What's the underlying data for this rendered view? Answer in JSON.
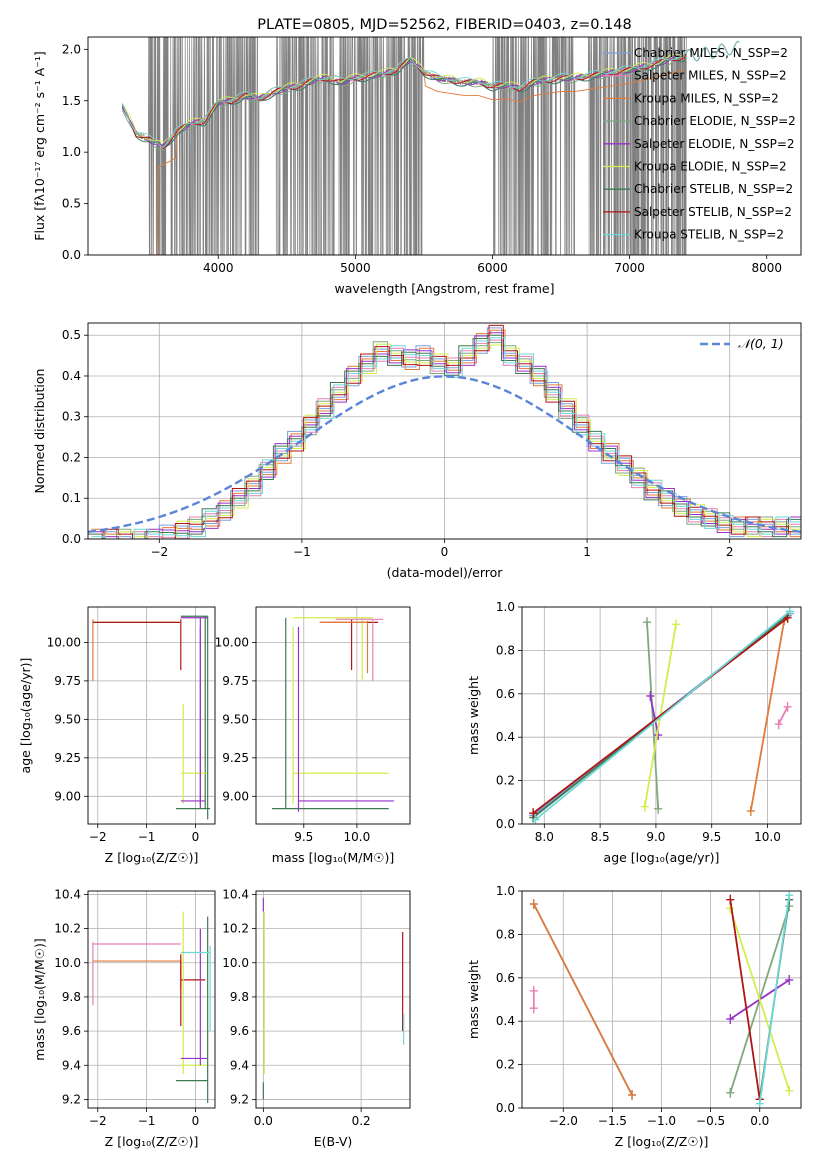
{
  "colors": {
    "Chabrier MILES": "#7b9fe0",
    "Salpeter MILES": "#e87fb8",
    "Kroupa MILES": "#e07b39",
    "Chabrier ELODIE": "#7fa87f",
    "Salpeter ELODIE": "#9b30c8",
    "Kroupa ELODIE": "#d4ec4e",
    "Chabrier STELIB": "#3d7a52",
    "Salpeter STELIB": "#b01515",
    "Kroupa STELIB": "#6fd6d6",
    "data": "#808080",
    "normal": "#5b85d9"
  },
  "chart_data": [
    {
      "id": "spectrum",
      "type": "line",
      "title": "PLATE=0805, MJD=52562, FIBERID=0403, z=0.148",
      "xlabel": "wavelength [Angstrom, rest frame]",
      "ylabel": "Flux [fλ10⁻¹⁷ erg cm⁻² s⁻¹ A⁻¹]",
      "xlim": [
        3050,
        8250
      ],
      "ylim": [
        0,
        2.12
      ],
      "xticks": [
        4000,
        5000,
        6000,
        7000,
        8000
      ],
      "yticks": [
        0.0,
        0.5,
        1.0,
        1.5,
        2.0
      ],
      "legend_position": "top-right",
      "legend": [
        "Chabrier MILES, N_SSP=2",
        "Salpeter MILES, N_SSP=2",
        "Kroupa MILES, N_SSP=2",
        "Chabrier ELODIE, N_SSP=2",
        "Salpeter ELODIE, N_SSP=2",
        "Kroupa ELODIE, N_SSP=2",
        "Chabrier STELIB, N_SSP=2",
        "Salpeter STELIB, N_SSP=2",
        "Kroupa STELIB, N_SSP=2"
      ],
      "continuum_x": [
        3300,
        3400,
        3500,
        3600,
        3700,
        3800,
        3900,
        4000,
        4100,
        4200,
        4300,
        4400,
        4500,
        4600,
        4700,
        4800,
        4900,
        5000,
        5100,
        5200,
        5300,
        5400,
        5500,
        5600,
        5700,
        5800,
        5900,
        6000,
        6100,
        6200,
        6300,
        6400,
        6500,
        6600,
        6700,
        6800,
        6900,
        7000,
        7100,
        7200,
        7300,
        7400,
        7500,
        7600,
        7700,
        7800
      ],
      "continuum_y": [
        1.45,
        1.18,
        1.12,
        1.05,
        1.2,
        1.28,
        1.3,
        1.48,
        1.5,
        1.55,
        1.52,
        1.58,
        1.62,
        1.65,
        1.7,
        1.72,
        1.68,
        1.72,
        1.74,
        1.76,
        1.8,
        1.9,
        1.78,
        1.72,
        1.7,
        1.68,
        1.68,
        1.64,
        1.65,
        1.62,
        1.68,
        1.7,
        1.72,
        1.72,
        1.74,
        1.76,
        1.78,
        1.8,
        1.83,
        1.86,
        1.9,
        1.93,
        1.95,
        1.97,
        2.0,
        2.02
      ]
    },
    {
      "id": "residuals",
      "type": "line",
      "xlabel": "(data-model)/error",
      "ylabel": "Normed distribution",
      "xlim": [
        -2.5,
        2.5
      ],
      "ylim": [
        0,
        0.53
      ],
      "xticks": [
        -2,
        -1,
        0,
        1,
        2
      ],
      "yticks": [
        0.0,
        0.1,
        0.2,
        0.3,
        0.4,
        0.5
      ],
      "legend": [
        "𝒩(0, 1)"
      ],
      "legend_position": "top-right",
      "hist_x": [
        -2.5,
        -2.4,
        -2.3,
        -2.2,
        -2.1,
        -2.0,
        -1.9,
        -1.8,
        -1.7,
        -1.6,
        -1.5,
        -1.4,
        -1.3,
        -1.2,
        -1.1,
        -1.0,
        -0.9,
        -0.8,
        -0.7,
        -0.6,
        -0.5,
        -0.4,
        -0.3,
        -0.2,
        -0.1,
        0.0,
        0.1,
        0.2,
        0.3,
        0.4,
        0.5,
        0.6,
        0.7,
        0.8,
        0.9,
        1.0,
        1.1,
        1.2,
        1.3,
        1.4,
        1.5,
        1.6,
        1.7,
        1.8,
        1.9,
        2.0,
        2.1,
        2.2,
        2.3,
        2.4
      ],
      "hist_y": [
        0.0,
        0.0,
        0.0,
        0.0,
        0.0,
        0.01,
        0.02,
        0.03,
        0.05,
        0.07,
        0.1,
        0.13,
        0.17,
        0.21,
        0.24,
        0.28,
        0.32,
        0.36,
        0.4,
        0.43,
        0.46,
        0.45,
        0.44,
        0.45,
        0.43,
        0.42,
        0.45,
        0.48,
        0.5,
        0.45,
        0.43,
        0.4,
        0.36,
        0.32,
        0.28,
        0.24,
        0.21,
        0.18,
        0.15,
        0.12,
        0.1,
        0.08,
        0.06,
        0.05,
        0.04,
        0.03,
        0.03,
        0.03,
        0.03,
        0.03
      ]
    },
    {
      "id": "age-vs-Z",
      "type": "scatter",
      "xlabel": "Z [log₁₀(Z/Z☉)]",
      "ylabel": "age  [log₁₀(age/yr)]",
      "xlim": [
        -2.2,
        0.4
      ],
      "ylim": [
        8.82,
        10.23
      ],
      "xticks": [
        -2,
        -1,
        0
      ],
      "yticks": [
        9.0,
        9.25,
        9.5,
        9.75,
        10.0
      ]
    },
    {
      "id": "age-vs-mass",
      "type": "scatter",
      "xlabel": "mass [log₁₀(M/M☉)]",
      "ylabel": "",
      "xlim": [
        9.05,
        10.5
      ],
      "ylim": [
        8.82,
        10.23
      ],
      "xticks": [
        9.5,
        10.0
      ],
      "yticks": [
        9.0,
        9.25,
        9.5,
        9.75,
        10.0
      ]
    },
    {
      "id": "weight-vs-age",
      "type": "line",
      "xlabel": "age  [log₁₀(age/yr)]",
      "ylabel": "mass weight",
      "xlim": [
        7.8,
        10.3
      ],
      "ylim": [
        0,
        1
      ],
      "xticks": [
        8.0,
        8.5,
        9.0,
        9.5,
        10.0
      ],
      "yticks": [
        0.0,
        0.2,
        0.4,
        0.6,
        0.8,
        1.0
      ],
      "series": [
        {
          "model": "Chabrier MILES",
          "x": [
            7.9,
            10.2
          ],
          "y": [
            0.04,
            0.97
          ]
        },
        {
          "model": "Salpeter MILES",
          "x": [
            10.1,
            10.18
          ],
          "y": [
            0.46,
            0.54
          ]
        },
        {
          "model": "Kroupa MILES",
          "x": [
            9.85,
            10.15
          ],
          "y": [
            0.06,
            0.94
          ]
        },
        {
          "model": "Chabrier ELODIE",
          "x": [
            8.92,
            9.02
          ],
          "y": [
            0.93,
            0.07
          ]
        },
        {
          "model": "Salpeter ELODIE",
          "x": [
            8.95,
            9.02
          ],
          "y": [
            0.59,
            0.41
          ]
        },
        {
          "model": "Kroupa ELODIE",
          "x": [
            8.9,
            9.18
          ],
          "y": [
            0.08,
            0.92
          ]
        },
        {
          "model": "Chabrier STELIB",
          "x": [
            7.9,
            10.18
          ],
          "y": [
            0.03,
            0.96
          ]
        },
        {
          "model": "Salpeter STELIB",
          "x": [
            7.9,
            10.18
          ],
          "y": [
            0.05,
            0.95
          ]
        },
        {
          "model": "Kroupa STELIB",
          "x": [
            7.92,
            10.2
          ],
          "y": [
            0.02,
            0.98
          ]
        }
      ]
    },
    {
      "id": "mass-vs-Z",
      "type": "scatter",
      "xlabel": "Z [log₁₀(Z/Z☉)]",
      "ylabel": "mass [log₁₀(M/M☉)]",
      "xlim": [
        -2.2,
        0.4
      ],
      "ylim": [
        9.15,
        10.42
      ],
      "xticks": [
        -2,
        -1,
        0
      ],
      "yticks": [
        9.2,
        9.4,
        9.6,
        9.8,
        10.0,
        10.2,
        10.4
      ]
    },
    {
      "id": "mass-vs-EBV",
      "type": "scatter",
      "xlabel": "E(B-V)",
      "ylabel": "",
      "xlim": [
        -0.015,
        0.3
      ],
      "ylim": [
        9.15,
        10.42
      ],
      "xticks": [
        0.0,
        0.2
      ],
      "yticks": [
        9.2,
        9.4,
        9.6,
        9.8,
        10.0,
        10.2,
        10.4
      ]
    },
    {
      "id": "weight-vs-Z",
      "type": "line",
      "xlabel": "Z [log₁₀(Z/Z☉)]",
      "ylabel": "mass weight",
      "xlim": [
        -2.42,
        0.42
      ],
      "ylim": [
        0,
        1
      ],
      "xticks": [
        -2.0,
        -1.5,
        -1.0,
        -0.5,
        0.0
      ],
      "yticks": [
        0.0,
        0.2,
        0.4,
        0.6,
        0.8,
        1.0
      ],
      "series": [
        {
          "model": "Chabrier MILES",
          "x": [
            -2.3,
            -1.3
          ],
          "y": [
            0.94,
            0.06
          ]
        },
        {
          "model": "Salpeter MILES",
          "x": [
            -2.3,
            -2.3
          ],
          "y": [
            0.46,
            0.54
          ]
        },
        {
          "model": "Kroupa MILES",
          "x": [
            -2.3,
            -1.3
          ],
          "y": [
            0.94,
            0.06
          ]
        },
        {
          "model": "Chabrier ELODIE",
          "x": [
            -0.3,
            0.3
          ],
          "y": [
            0.07,
            0.93
          ]
        },
        {
          "model": "Salpeter ELODIE",
          "x": [
            -0.3,
            0.3
          ],
          "y": [
            0.41,
            0.59
          ]
        },
        {
          "model": "Kroupa ELODIE",
          "x": [
            -0.3,
            0.3
          ],
          "y": [
            0.92,
            0.08
          ]
        },
        {
          "model": "Chabrier STELIB",
          "x": [
            0.0,
            0.3
          ],
          "y": [
            0.04,
            0.96
          ]
        },
        {
          "model": "Salpeter STELIB",
          "x": [
            -0.3,
            0.0
          ],
          "y": [
            0.96,
            0.04
          ]
        },
        {
          "model": "Kroupa STELIB",
          "x": [
            0.0,
            0.3
          ],
          "y": [
            0.02,
            0.98
          ]
        }
      ]
    }
  ]
}
